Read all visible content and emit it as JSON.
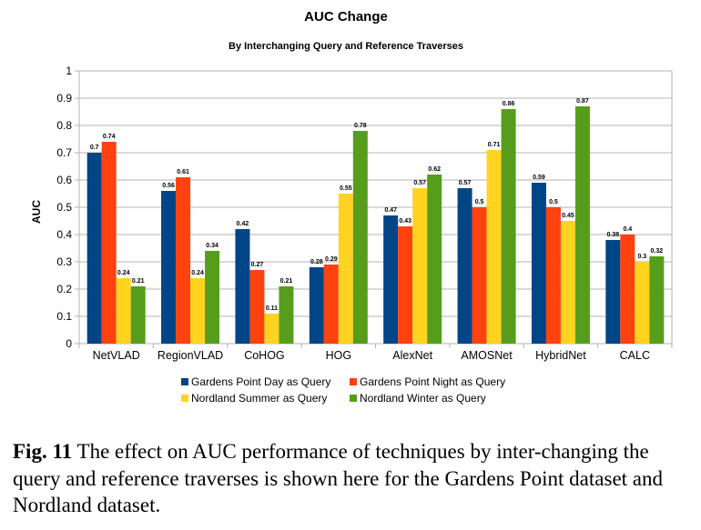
{
  "chart_data": {
    "type": "bar",
    "title": "AUC Change",
    "subtitle": "By Interchanging Query and Reference Traverses",
    "xlabel": "",
    "ylabel": "AUC",
    "ylim": [
      0,
      1
    ],
    "yticks": [
      "0",
      "0.1",
      "0.2",
      "0.3",
      "0.4",
      "0.5",
      "0.6",
      "0.7",
      "0.8",
      "0.9",
      "1"
    ],
    "grid": true,
    "legend_position": "bottom",
    "categories": [
      "NetVLAD",
      "RegionVLAD",
      "CoHOG",
      "HOG",
      "AlexNet",
      "AMOSNet",
      "HybridNet",
      "CALC"
    ],
    "series": [
      {
        "name": "Gardens Point Day as Query",
        "color": "#004586",
        "values": [
          0.7,
          0.56,
          0.42,
          0.28,
          0.47,
          0.57,
          0.59,
          0.38
        ]
      },
      {
        "name": "Gardens Point Night as Query",
        "color": "#ff420e",
        "values": [
          0.74,
          0.61,
          0.27,
          0.29,
          0.43,
          0.5,
          0.5,
          0.4
        ]
      },
      {
        "name": "Nordland Summer as Query",
        "color": "#ffd320",
        "values": [
          0.24,
          0.24,
          0.11,
          0.55,
          0.57,
          0.71,
          0.45,
          0.3
        ]
      },
      {
        "name": "Nordland Winter as Query",
        "color": "#579d1c",
        "values": [
          0.21,
          0.34,
          0.21,
          0.78,
          0.62,
          0.86,
          0.87,
          0.32
        ]
      }
    ]
  },
  "caption": {
    "label": "Fig. 11",
    "text": "The effect on AUC performance of techniques by inter-changing the query and reference traverses is shown here for the Gardens Point dataset and Nordland dataset."
  }
}
